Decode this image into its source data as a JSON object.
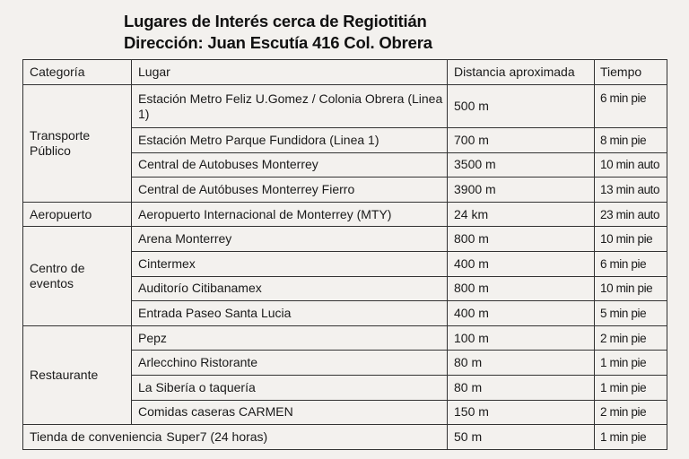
{
  "title": {
    "line1": "Lugares de Interés cerca de Regiotitián",
    "line2": "Dirección: Juan Escutía 416 Col. Obrera"
  },
  "table": {
    "headers": [
      "Categoría",
      "Lugar",
      "Distancia aproximada",
      "Tiempo"
    ],
    "groups": [
      {
        "category": "Transporte Público",
        "rows": [
          {
            "lugar": "Estación Metro Feliz U.Gomez / Colonia Obrera (Linea 1)",
            "distancia": "500 m",
            "tiempo": "6 min pie"
          },
          {
            "lugar": "Estación Metro Parque Fundidora (Linea 1)",
            "distancia": "700 m",
            "tiempo": "8 min pie"
          },
          {
            "lugar": "Central de Autobuses Monterrey",
            "distancia": "3500 m",
            "tiempo": "10 min auto"
          },
          {
            "lugar": "Central de Autóbuses Monterrey Fierro",
            "distancia": "3900 m",
            "tiempo": "13 min auto"
          }
        ]
      },
      {
        "category": "Aeropuerto",
        "rows": [
          {
            "lugar": "Aeropuerto Internacional de Monterrey (MTY)",
            "distancia": "24 km",
            "tiempo": "23 min auto"
          }
        ]
      },
      {
        "category": "Centro de eventos",
        "rows": [
          {
            "lugar": "Arena Monterrey",
            "distancia": "800 m",
            "tiempo": "10 min pie"
          },
          {
            "lugar": "Cintermex",
            "distancia": "400 m",
            "tiempo": "6 min pie"
          },
          {
            "lugar": "Auditorío Citibanamex",
            "distancia": "800 m",
            "tiempo": "10 min pie"
          },
          {
            "lugar": "Entrada Paseo Santa Lucia",
            "distancia": "400 m",
            "tiempo": "5 min pie"
          }
        ]
      },
      {
        "category": "Restaurante",
        "rows": [
          {
            "lugar": "Pepz",
            "distancia": "100 m",
            "tiempo": "2 min pie"
          },
          {
            "lugar": "Arlecchino Ristorante",
            "distancia": "80 m",
            "tiempo": "1 min pie"
          },
          {
            "lugar": "La Sibería o taquería",
            "distancia": "80 m",
            "tiempo": "1 min pie"
          },
          {
            "lugar": "Comidas caseras CARMEN",
            "distancia": "150 m",
            "tiempo": "2 min pie"
          }
        ]
      },
      {
        "category": "Tienda de conveniencia",
        "rows": [
          {
            "lugar": "Super7 (24 horas)",
            "distancia": "50 m",
            "tiempo": "1 min pie"
          }
        ]
      }
    ]
  }
}
